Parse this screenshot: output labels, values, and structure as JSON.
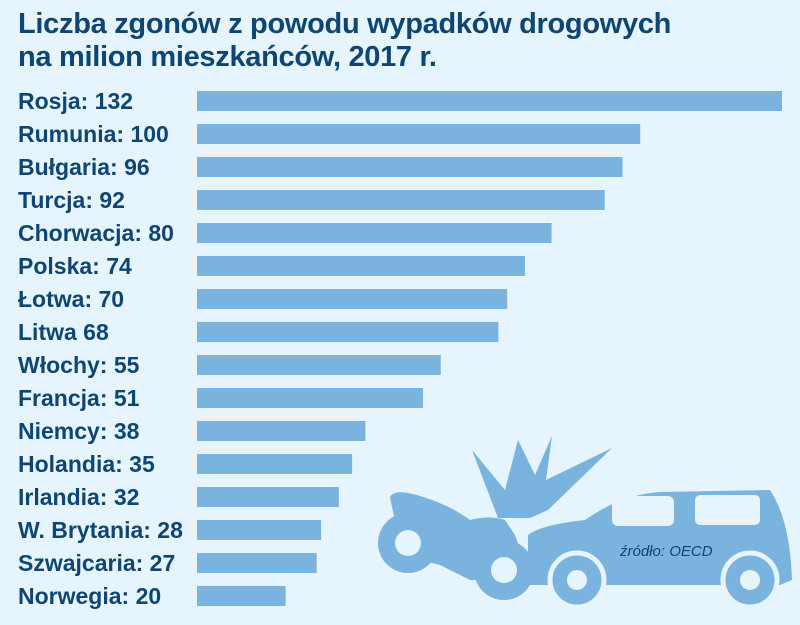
{
  "chart_data": {
    "type": "bar",
    "orientation": "horizontal",
    "title": "Liczba zgonów z powodu wypadków drogowych na milion mieszkańców, 2017 r.",
    "title_lines": [
      "Liczba zgonów z powodu wypadków drogowych",
      "na milion mieszkańców, 2017 r."
    ],
    "categories": [
      "Rosja",
      "Rumunia",
      "Bułgaria",
      "Turcja",
      "Chorwacja",
      "Polska",
      "Łotwa",
      "Litwa",
      "Włochy",
      "Francja",
      "Niemcy",
      "Holandia",
      "Irlandia",
      "W. Brytania",
      "Szwajcaria",
      "Norwegia"
    ],
    "labels": [
      "Rosja: 132",
      "Rumunia: 100",
      "Bułgaria: 96",
      "Turcja: 92",
      "Chorwacja: 80",
      "Polska: 74",
      "Łotwa: 70",
      "Litwa 68",
      "Włochy: 55",
      "Francja: 51",
      "Niemcy: 38",
      "Holandia: 35",
      "Irlandia: 32",
      "W. Brytania: 28",
      "Szwajcaria: 27",
      "Norwegia: 20"
    ],
    "values": [
      132,
      100,
      96,
      92,
      80,
      74,
      70,
      68,
      55,
      51,
      38,
      35,
      32,
      28,
      27,
      20
    ],
    "xlim": [
      0,
      132
    ],
    "grid": false,
    "source": "źródło: OECD",
    "colors": {
      "bar": "#7ab4de",
      "text": "#0d4675",
      "background": "#e6f4fd"
    }
  },
  "illustration": {
    "icon": "car-motorcycle-crash-icon"
  }
}
